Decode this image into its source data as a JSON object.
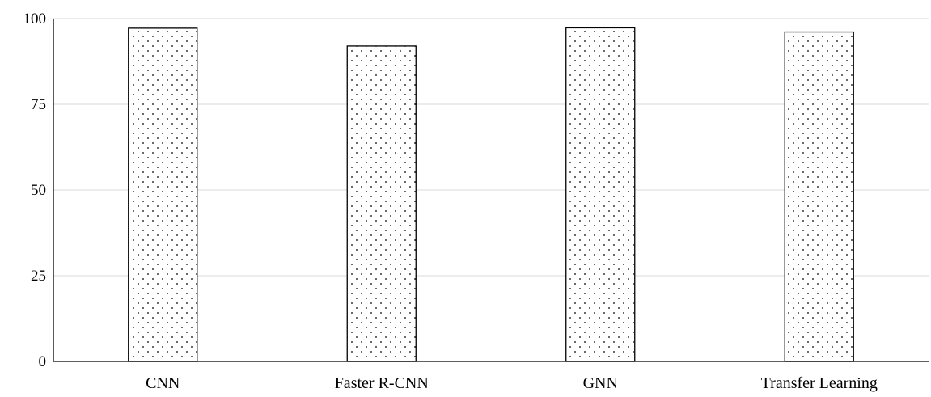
{
  "chart_data": {
    "type": "bar",
    "title": "",
    "xlabel": "",
    "ylabel": "",
    "categories": [
      "CNN",
      "Faster R-CNN",
      "GNN",
      "Transfer Learning"
    ],
    "values": [
      97.2,
      92.0,
      97.3,
      96.1
    ],
    "ylim": [
      0,
      100
    ],
    "yticks": [
      "0",
      "25",
      "50",
      "75",
      "100"
    ],
    "grid": true,
    "legend": "none",
    "colors": {
      "bar_fill": "#ffffff",
      "bar_stroke": "#000000",
      "dot_pattern": "#000000",
      "gridline": "#d9d9d9",
      "axis": "#000000"
    }
  }
}
